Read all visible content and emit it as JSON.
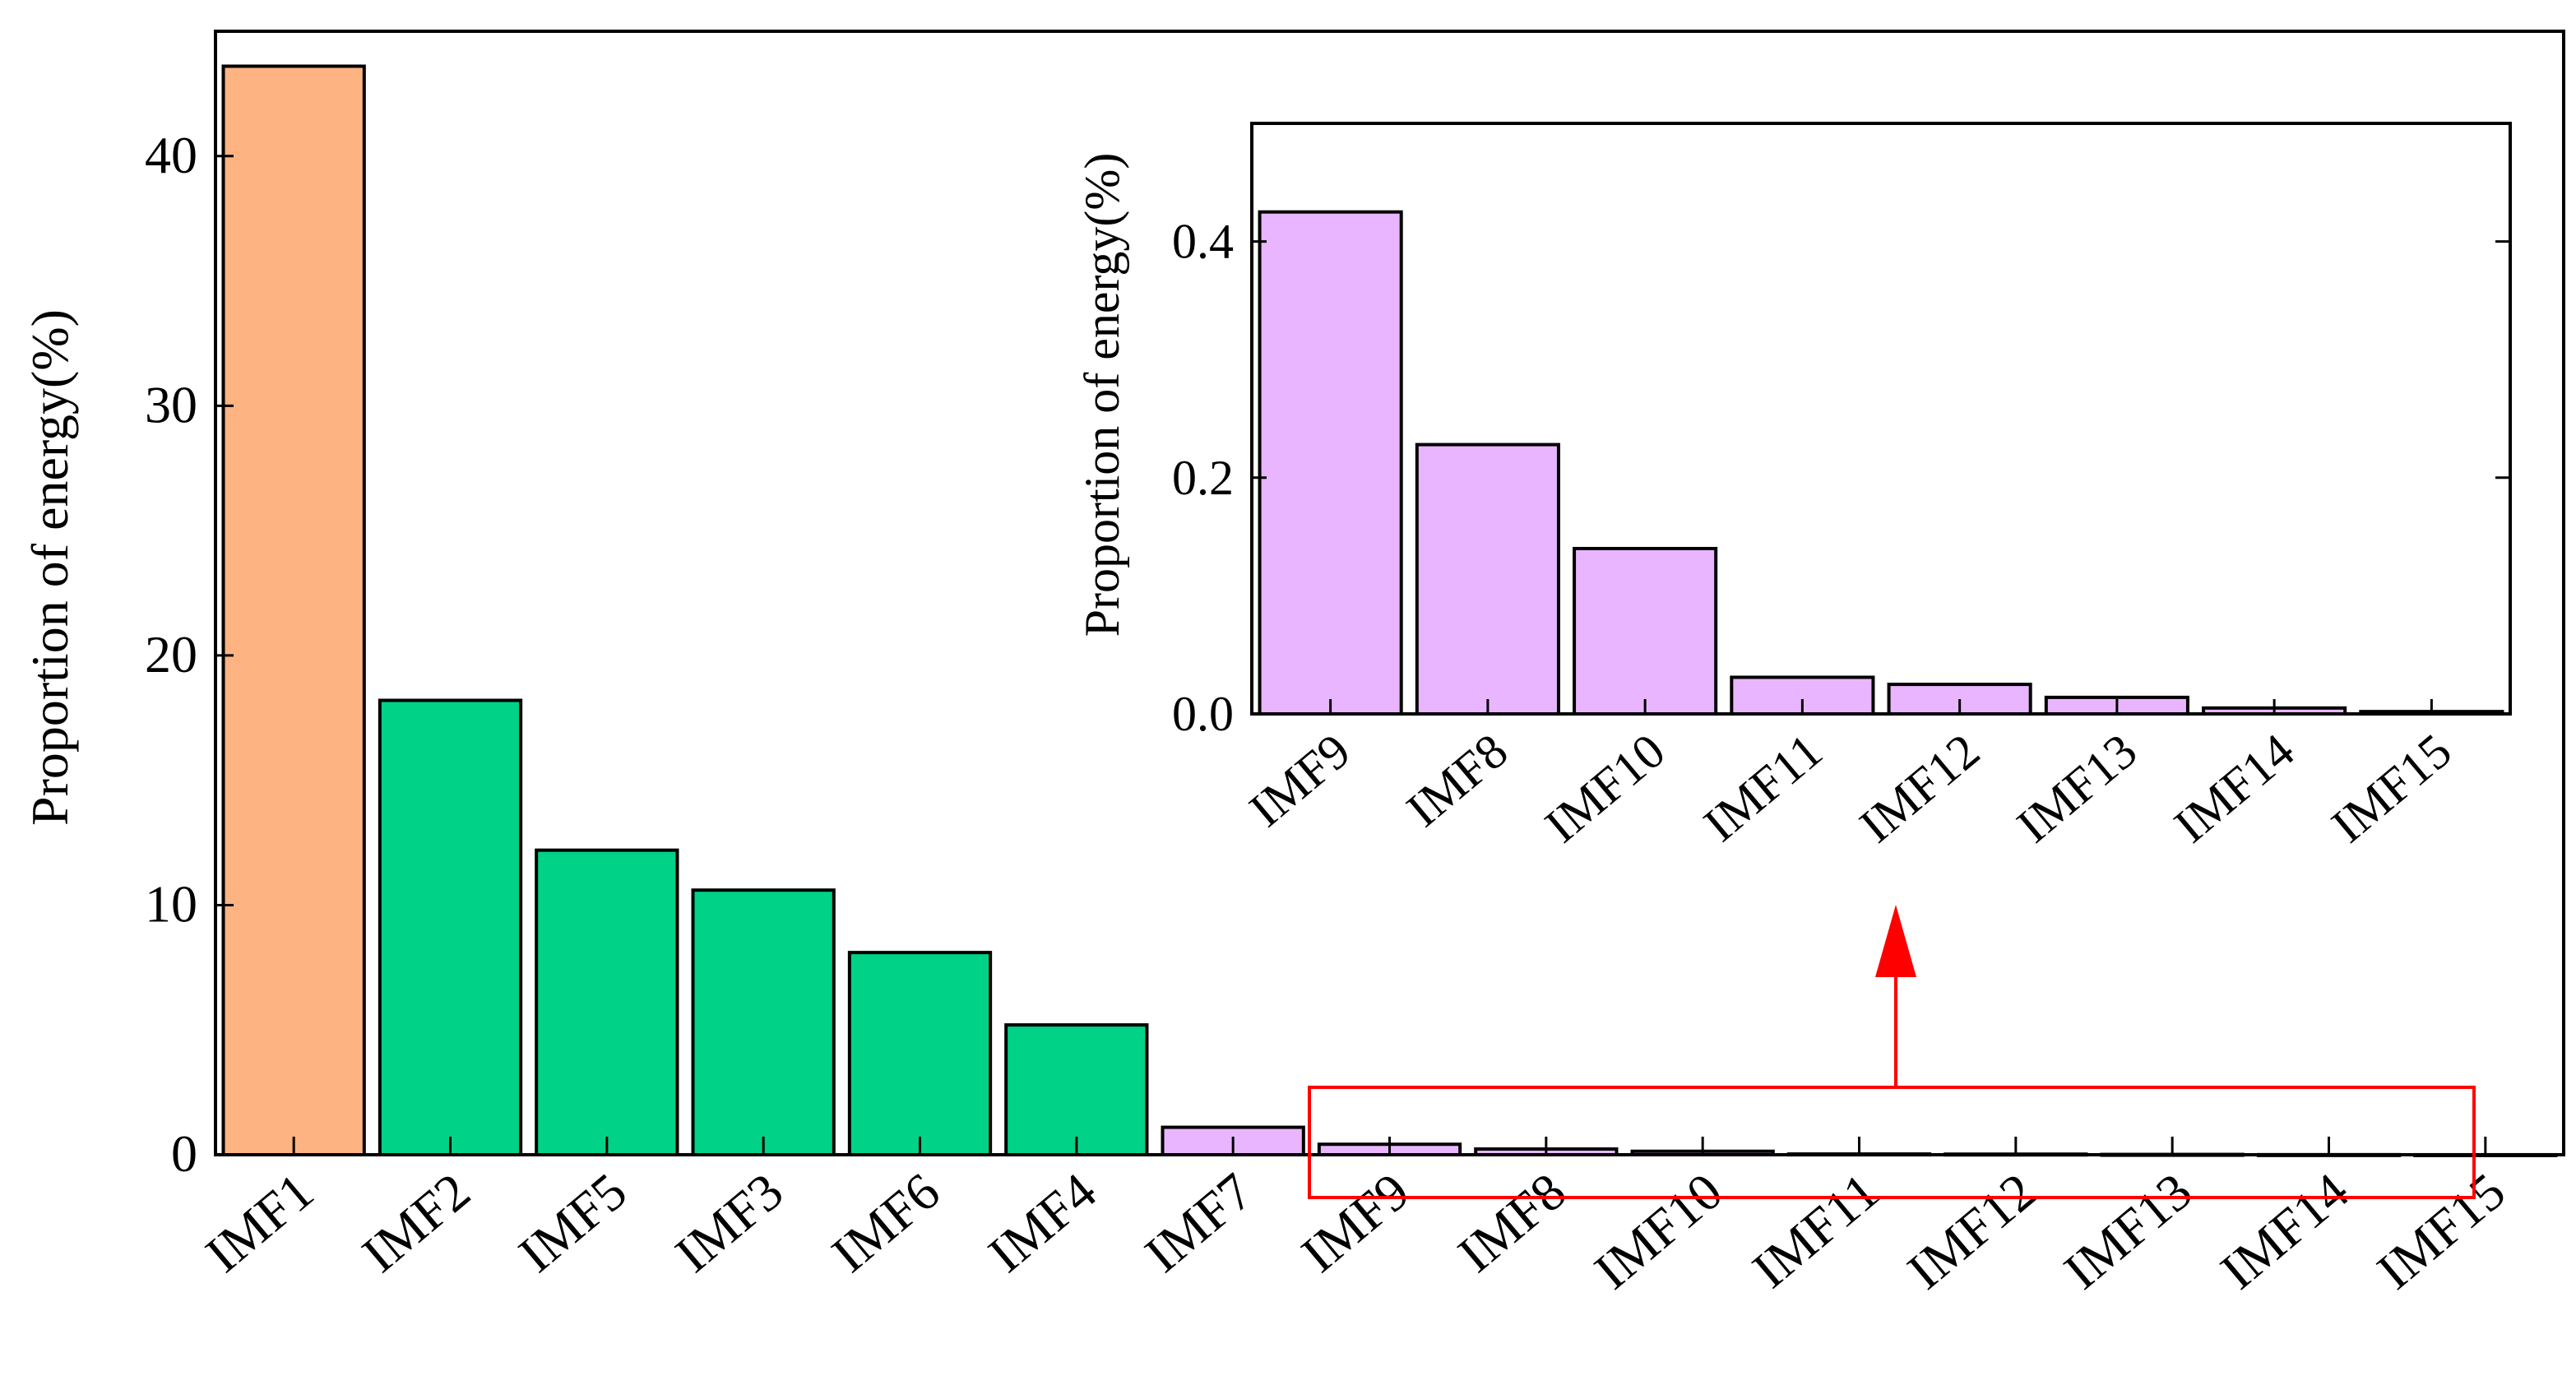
{
  "chart_data": [
    {
      "type": "bar",
      "title": "",
      "xlabel": "",
      "ylabel": "Proportion of energy(%)",
      "ylim": [
        0,
        45
      ],
      "yticks": [
        0,
        10,
        20,
        30,
        40
      ],
      "categories": [
        "IMF1",
        "IMF2",
        "IMF5",
        "IMF3",
        "IMF6",
        "IMF4",
        "IMF7",
        "IMF9",
        "IMF8",
        "IMF10",
        "IMF11",
        "IMF12",
        "IMF13",
        "IMF14",
        "IMF15"
      ],
      "values": [
        43.6,
        18.2,
        12.2,
        10.6,
        8.1,
        5.2,
        1.1,
        0.42,
        0.23,
        0.14,
        0.03,
        0.025,
        0.014,
        0.005,
        0.002
      ],
      "colors": [
        "#FDB382",
        "#00D287",
        "#00D287",
        "#00D287",
        "#00D287",
        "#00D287",
        "#EAB5FF",
        "#EAB5FF",
        "#EAB5FF",
        "#EAB5FF",
        "#EAB5FF",
        "#EAB5FF",
        "#EAB5FF",
        "#EAB5FF",
        "#EAB5FF"
      ]
    },
    {
      "type": "bar",
      "title": "",
      "xlabel": "",
      "ylabel": "Proportion of energy(%)",
      "ylim": [
        0,
        0.5
      ],
      "yticks": [
        0.0,
        0.2,
        0.4
      ],
      "categories": [
        "IMF9",
        "IMF8",
        "IMF10",
        "IMF11",
        "IMF12",
        "IMF13",
        "IMF14",
        "IMF15"
      ],
      "values": [
        0.425,
        0.228,
        0.14,
        0.031,
        0.025,
        0.014,
        0.005,
        0.002
      ],
      "color": "#EAB5FF"
    }
  ],
  "annotation": {
    "highlight_color": "#FF0000"
  }
}
